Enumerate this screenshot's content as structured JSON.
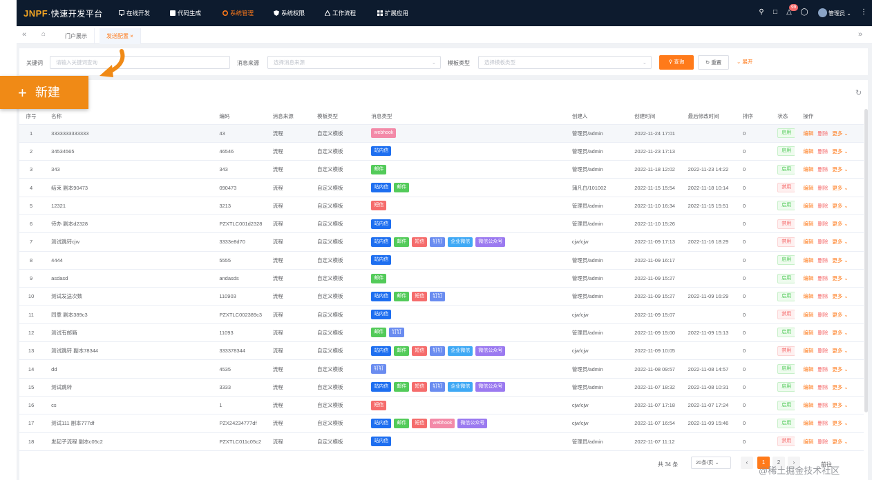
{
  "nav": {
    "logo_brand": "JNPF",
    "logo_rest": "·快速开发平台",
    "items": [
      {
        "label": "在线开发",
        "icon": "monitor-icon"
      },
      {
        "label": "代码生成",
        "icon": "code-icon"
      },
      {
        "label": "系统管理",
        "icon": "gear-icon",
        "active": true
      },
      {
        "label": "系统权限",
        "icon": "shield-icon"
      },
      {
        "label": "工作流程",
        "icon": "flow-icon"
      },
      {
        "label": "扩展应用",
        "icon": "apps-icon"
      }
    ],
    "badge": "99",
    "user": "管理员"
  },
  "tabs": [
    {
      "label": "门户展示",
      "active": false
    },
    {
      "label": "发送配置",
      "active": true
    }
  ],
  "search": {
    "keyword_label": "关键词",
    "keyword_placeholder": "请输入关键词查询",
    "source_label": "消息来源",
    "source_placeholder": "选择消息来源",
    "template_label": "模板类型",
    "template_placeholder": "选择模板类型",
    "query_label": "查询",
    "reset_label": "重置",
    "expand_label": "展开"
  },
  "table": {
    "headers": [
      "序号",
      "名称",
      "编码",
      "消息来源",
      "模板类型",
      "消息类型",
      "创建人",
      "创建时间",
      "最后修改时间",
      "排序",
      "状态",
      "操作"
    ],
    "rows": [
      {
        "no": "1",
        "name": "3333333333333",
        "code": "43",
        "source": "流程",
        "tpl": "自定义模板",
        "types": [
          {
            "t": "webhook",
            "c": "pink"
          }
        ],
        "creator": "管理员/admin",
        "created": "2022-11-24 17:01",
        "modified": "",
        "sort": "0",
        "status": "启用",
        "on": true,
        "hl": true
      },
      {
        "no": "2",
        "name": "34534565",
        "code": "46546",
        "source": "流程",
        "tpl": "自定义模板",
        "types": [
          {
            "t": "站内信",
            "c": "blue"
          }
        ],
        "creator": "管理员/admin",
        "created": "2022-11-23 17:13",
        "modified": "",
        "sort": "0",
        "status": "启用",
        "on": true
      },
      {
        "no": "3",
        "name": "343",
        "code": "343",
        "source": "流程",
        "tpl": "自定义模板",
        "types": [
          {
            "t": "邮件",
            "c": "green"
          }
        ],
        "creator": "管理员/admin",
        "created": "2022-11-18 12:02",
        "modified": "2022-11-23 14:22",
        "sort": "0",
        "status": "启用",
        "on": true
      },
      {
        "no": "4",
        "name": "结束 副本90473",
        "code": "090473",
        "source": "流程",
        "tpl": "自定义模板",
        "types": [
          {
            "t": "站内信",
            "c": "blue"
          },
          {
            "t": "邮件",
            "c": "green"
          }
        ],
        "creator": "蒲凡白/101002",
        "created": "2022-11-15 15:54",
        "modified": "2022-11-18 10:14",
        "sort": "0",
        "status": "禁用",
        "on": false
      },
      {
        "no": "5",
        "name": "12321",
        "code": "3213",
        "source": "流程",
        "tpl": "自定义模板",
        "types": [
          {
            "t": "短信",
            "c": "red"
          }
        ],
        "creator": "管理员/admin",
        "created": "2022-11-10 16:34",
        "modified": "2022-11-15 15:51",
        "sort": "0",
        "status": "启用",
        "on": true
      },
      {
        "no": "6",
        "name": "待办 副本d2328",
        "code": "PZXTLC001d2328",
        "source": "流程",
        "tpl": "自定义模板",
        "types": [
          {
            "t": "站内信",
            "c": "blue"
          }
        ],
        "creator": "管理员/admin",
        "created": "2022-11-10 15:26",
        "modified": "",
        "sort": "0",
        "status": "禁用",
        "on": false
      },
      {
        "no": "7",
        "name": "测试跳转cjw",
        "code": "3333e8d70",
        "source": "流程",
        "tpl": "自定义模板",
        "types": [
          {
            "t": "站内信",
            "c": "blue"
          },
          {
            "t": "邮件",
            "c": "green"
          },
          {
            "t": "短信",
            "c": "red"
          },
          {
            "t": "钉钉",
            "c": "indigo"
          },
          {
            "t": "企业微信",
            "c": "cyan"
          },
          {
            "t": "微信公众号",
            "c": "purple"
          }
        ],
        "creator": "cjw/cjw",
        "created": "2022-11-09 17:13",
        "modified": "2022-11-16 18:29",
        "sort": "0",
        "status": "禁用",
        "on": false
      },
      {
        "no": "8",
        "name": "4444",
        "code": "5555",
        "source": "流程",
        "tpl": "自定义模板",
        "types": [
          {
            "t": "站内信",
            "c": "blue"
          }
        ],
        "creator": "管理员/admin",
        "created": "2022-11-09 16:17",
        "modified": "",
        "sort": "0",
        "status": "启用",
        "on": true
      },
      {
        "no": "9",
        "name": "asdasd",
        "code": "andasds",
        "source": "流程",
        "tpl": "自定义模板",
        "types": [
          {
            "t": "邮件",
            "c": "green"
          }
        ],
        "creator": "管理员/admin",
        "created": "2022-11-09 15:27",
        "modified": "",
        "sort": "0",
        "status": "启用",
        "on": true
      },
      {
        "no": "10",
        "name": "测试发送次数",
        "code": "110903",
        "source": "流程",
        "tpl": "自定义模板",
        "types": [
          {
            "t": "站内信",
            "c": "blue"
          },
          {
            "t": "邮件",
            "c": "green"
          },
          {
            "t": "短信",
            "c": "red"
          },
          {
            "t": "钉钉",
            "c": "indigo"
          }
        ],
        "creator": "管理员/admin",
        "created": "2022-11-09 15:27",
        "modified": "2022-11-09 16:29",
        "sort": "0",
        "status": "启用",
        "on": true
      },
      {
        "no": "11",
        "name": "同意 副本389c3",
        "code": "PZXTLC002389c3",
        "source": "流程",
        "tpl": "自定义模板",
        "types": [
          {
            "t": "站内信",
            "c": "blue"
          }
        ],
        "creator": "cjw/cjw",
        "created": "2022-11-09 15:07",
        "modified": "",
        "sort": "0",
        "status": "禁用",
        "on": false
      },
      {
        "no": "12",
        "name": "测试有邮箱",
        "code": "11093",
        "source": "流程",
        "tpl": "自定义模板",
        "types": [
          {
            "t": "邮件",
            "c": "green"
          },
          {
            "t": "钉钉",
            "c": "indigo"
          }
        ],
        "creator": "管理员/admin",
        "created": "2022-11-09 15:00",
        "modified": "2022-11-09 15:13",
        "sort": "0",
        "status": "启用",
        "on": true
      },
      {
        "no": "13",
        "name": "测试跳转 副本78344",
        "code": "333378344",
        "source": "流程",
        "tpl": "自定义模板",
        "types": [
          {
            "t": "站内信",
            "c": "blue"
          },
          {
            "t": "邮件",
            "c": "green"
          },
          {
            "t": "短信",
            "c": "red"
          },
          {
            "t": "钉钉",
            "c": "indigo"
          },
          {
            "t": "企业微信",
            "c": "cyan"
          },
          {
            "t": "微信公众号",
            "c": "purple"
          }
        ],
        "creator": "cjw/cjw",
        "created": "2022-11-09 10:05",
        "modified": "",
        "sort": "0",
        "status": "禁用",
        "on": false
      },
      {
        "no": "14",
        "name": "dd",
        "code": "4535",
        "source": "流程",
        "tpl": "自定义模板",
        "types": [
          {
            "t": "钉钉",
            "c": "indigo"
          }
        ],
        "creator": "管理员/admin",
        "created": "2022-11-08 09:57",
        "modified": "2022-11-08 14:57",
        "sort": "0",
        "status": "启用",
        "on": true
      },
      {
        "no": "15",
        "name": "测试跳转",
        "code": "3333",
        "source": "流程",
        "tpl": "自定义模板",
        "types": [
          {
            "t": "站内信",
            "c": "blue"
          },
          {
            "t": "邮件",
            "c": "green"
          },
          {
            "t": "短信",
            "c": "red"
          },
          {
            "t": "钉钉",
            "c": "indigo"
          },
          {
            "t": "企业微信",
            "c": "cyan"
          },
          {
            "t": "微信公众号",
            "c": "purple"
          }
        ],
        "creator": "管理员/admin",
        "created": "2022-11-07 18:32",
        "modified": "2022-11-08 10:31",
        "sort": "0",
        "status": "启用",
        "on": true
      },
      {
        "no": "16",
        "name": "cs",
        "code": "1",
        "source": "流程",
        "tpl": "自定义模板",
        "types": [
          {
            "t": "短信",
            "c": "red"
          }
        ],
        "creator": "cjw/cjw",
        "created": "2022-11-07 17:18",
        "modified": "2022-11-07 17:24",
        "sort": "0",
        "status": "启用",
        "on": true
      },
      {
        "no": "17",
        "name": "测试111 副本777df",
        "code": "PZX24234777df",
        "source": "流程",
        "tpl": "自定义模板",
        "types": [
          {
            "t": "站内信",
            "c": "blue"
          },
          {
            "t": "邮件",
            "c": "green"
          },
          {
            "t": "短信",
            "c": "red"
          },
          {
            "t": "webhook",
            "c": "pink"
          },
          {
            "t": "微信公众号",
            "c": "purple"
          }
        ],
        "creator": "cjw/cjw",
        "created": "2022-11-07 16:54",
        "modified": "2022-11-09 15:46",
        "sort": "0",
        "status": "启用",
        "on": true
      },
      {
        "no": "18",
        "name": "发起子流程 副本c05c2",
        "code": "PZXTLC011c05c2",
        "source": "流程",
        "tpl": "自定义模板",
        "types": [
          {
            "t": "站内信",
            "c": "blue"
          }
        ],
        "creator": "管理员/admin",
        "created": "2022-11-07 11:12",
        "modified": "",
        "sort": "0",
        "status": "禁用",
        "on": false
      }
    ],
    "op_edit": "编辑",
    "op_delete": "删除",
    "op_more": "更多"
  },
  "pager": {
    "total": "共 34 条",
    "size": "20条/页",
    "pages": [
      "1",
      "2"
    ],
    "goto": "前往"
  },
  "overlay": {
    "new_label": "新建",
    "watermark": "@稀土掘金技术社区"
  },
  "colors": {
    "accent": "#ff7a1a",
    "nav_bg": "#0d1b2e",
    "new_btn": "#f08a16"
  }
}
